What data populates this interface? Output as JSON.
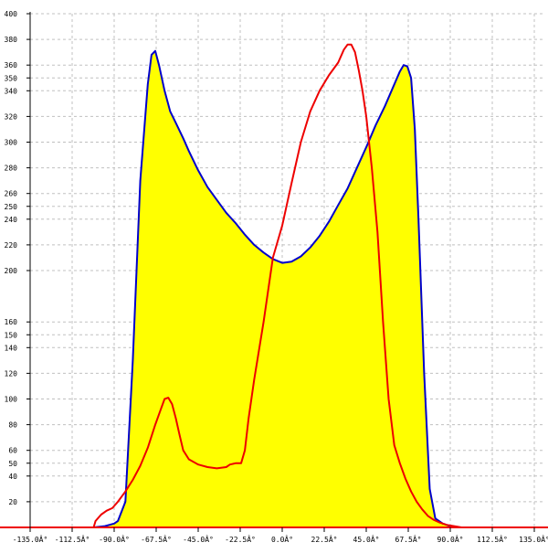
{
  "chart_data": {
    "type": "area",
    "xlim": [
      -135,
      135
    ],
    "ylim": [
      0,
      400
    ],
    "x_ticks": [
      -135,
      -112.5,
      -90,
      -67.5,
      -45,
      -22.5,
      0,
      22.5,
      45,
      67.5,
      90,
      112.5,
      135
    ],
    "x_tick_labels": [
      "-135.0Â°",
      "-112.5Â°",
      "-90.0Â°",
      "-67.5Â°",
      "-45.0Â°",
      "-22.5Â°",
      "0.0Â°",
      "22.5Â°",
      "45.0Â°",
      "67.5Â°",
      "90.0Â°",
      "112.5Â°",
      "135.0Â°"
    ],
    "y_ticks": [
      20,
      40,
      50,
      60,
      80,
      100,
      120,
      140,
      150,
      160,
      200,
      220,
      240,
      250,
      260,
      280,
      300,
      320,
      340,
      350,
      360,
      380,
      400
    ],
    "y_tick_labels": [
      "20",
      "40",
      "50",
      "60",
      "80",
      "100",
      "120",
      "140",
      "150",
      "160",
      "200",
      "220",
      "240",
      "250",
      "260",
      "280",
      "300",
      "320",
      "340",
      "350",
      "360",
      "380",
      "400"
    ],
    "grid": true,
    "colors": {
      "fill": "#ffff00",
      "series_blue": "#0000cc",
      "series_red": "#ee0000",
      "grid": "#c0c0c0",
      "axis": "#ee0000"
    },
    "series": [
      {
        "color": "#0000cc",
        "fill": "#ffff00",
        "x": [
          -101,
          -95,
          -90,
          -88,
          -84,
          -80,
          -76,
          -72,
          -70,
          -68,
          -66,
          -63,
          -60,
          -57,
          -53,
          -50,
          -45,
          -40,
          -35,
          -30,
          -25,
          -20,
          -15,
          -10,
          -5,
          0,
          5,
          10,
          15,
          20,
          25,
          30,
          35,
          40,
          45,
          50,
          55,
          60,
          63,
          65,
          67,
          69,
          71,
          73,
          76,
          79,
          82,
          86,
          90,
          95,
          100
        ],
        "y": [
          0,
          1,
          3,
          5,
          20,
          130,
          270,
          345,
          368,
          371,
          360,
          340,
          324,
          315,
          303,
          293,
          278,
          265,
          255,
          245,
          237,
          228,
          220,
          214,
          209,
          206,
          207,
          211,
          218,
          227,
          238,
          251,
          264,
          280,
          296,
          313,
          328,
          345,
          355,
          360,
          359,
          350,
          310,
          240,
          120,
          30,
          7,
          3,
          1,
          0,
          0
        ]
      },
      {
        "color": "#ee0000",
        "x": [
          -101,
          -100,
          -97,
          -94,
          -91,
          -88,
          -84,
          -80,
          -76,
          -72,
          -68,
          -65,
          -63,
          -61,
          -59,
          -57,
          -55,
          -53,
          -50,
          -45,
          -40,
          -35,
          -30,
          -28,
          -25,
          -22,
          -20,
          -18,
          -15,
          -10,
          -5,
          0,
          5,
          10,
          15,
          20,
          25,
          30,
          33,
          35,
          37,
          39,
          41,
          43,
          45,
          48,
          51,
          54,
          57,
          60,
          63,
          66,
          69,
          72,
          75,
          78,
          81,
          84,
          88,
          92,
          96,
          100
        ],
        "y": [
          0,
          5,
          10,
          13,
          15,
          20,
          28,
          37,
          48,
          62,
          80,
          92,
          100,
          101,
          96,
          85,
          72,
          60,
          53,
          49,
          47,
          46,
          47,
          49,
          50,
          50,
          60,
          85,
          115,
          160,
          210,
          235,
          268,
          300,
          324,
          340,
          352,
          362,
          372,
          376,
          376,
          370,
          356,
          340,
          320,
          280,
          230,
          160,
          100,
          64,
          50,
          38,
          28,
          20,
          14,
          9,
          6,
          4,
          2,
          1,
          0,
          0
        ]
      }
    ]
  }
}
